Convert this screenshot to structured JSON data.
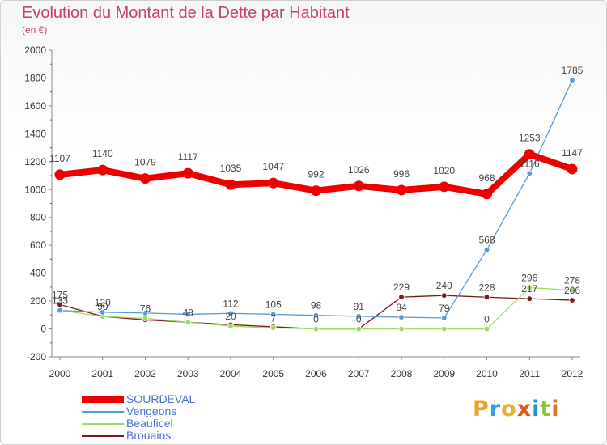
{
  "title": "Evolution du Montant de la Dette par Habitant",
  "subtitle": "(en €)",
  "logo": {
    "letters": [
      "P",
      "r",
      "o",
      "x",
      "i",
      "t",
      "i"
    ],
    "colors": [
      "#f0a020",
      "#3aa0d8",
      "#e8b030",
      "#e05a20",
      "#2a8fd0",
      "#8cc23a",
      "#e07030"
    ]
  },
  "chart_data": {
    "type": "line",
    "title": "Evolution du Montant de la Dette par Habitant",
    "ylabel": "(en €)",
    "x": [
      "2000",
      "2001",
      "2002",
      "2003",
      "2004",
      "2005",
      "2006",
      "2007",
      "2008",
      "2009",
      "2010",
      "2011",
      "2012"
    ],
    "ylim": [
      -200,
      2000
    ],
    "yticks": [
      "-200",
      "0",
      "200",
      "400",
      "600",
      "800",
      "1000",
      "1200",
      "1400",
      "1600",
      "1800",
      "2000"
    ],
    "grid": false,
    "legend_position": "bottom-left",
    "series": [
      {
        "name": "SOURDEVAL",
        "color": "#ee0000",
        "values": [
          1107,
          1140,
          1079,
          1117,
          1035,
          1047,
          992,
          1026,
          996,
          1020,
          968,
          1253,
          1147
        ],
        "labels": [
          "1107",
          "1140",
          "1079",
          "1117",
          "1035",
          "1047",
          "992",
          "1026",
          "996",
          "1020",
          "968",
          "1253",
          "1147"
        ]
      },
      {
        "name": "Vengeons",
        "color": "#5b9bd5",
        "values": [
          133,
          120,
          114,
          105,
          112,
          105,
          98,
          91,
          84,
          79,
          568,
          1116,
          1785
        ],
        "labels": [
          "133",
          "120",
          "",
          "",
          "112",
          "105",
          "98",
          "91",
          "84",
          "79",
          "568",
          "1116",
          "1785"
        ]
      },
      {
        "name": "Beauficel",
        "color": "#99dd66",
        "values": [
          133,
          90,
          76,
          48,
          20,
          7,
          0,
          0,
          0,
          0,
          0,
          296,
          278
        ],
        "labels": [
          "133",
          "90",
          "76",
          "48",
          "20",
          "7",
          "0",
          "0",
          "",
          "",
          "0",
          "296",
          "278"
        ]
      },
      {
        "name": "Brouains",
        "color": "#7a1a1a",
        "values": [
          175,
          90,
          65,
          48,
          30,
          15,
          0,
          0,
          229,
          240,
          228,
          217,
          206
        ],
        "labels": [
          "175",
          "",
          "",
          "",
          "",
          "",
          "",
          "",
          "229",
          "240",
          "228",
          "217",
          "206"
        ]
      }
    ]
  }
}
